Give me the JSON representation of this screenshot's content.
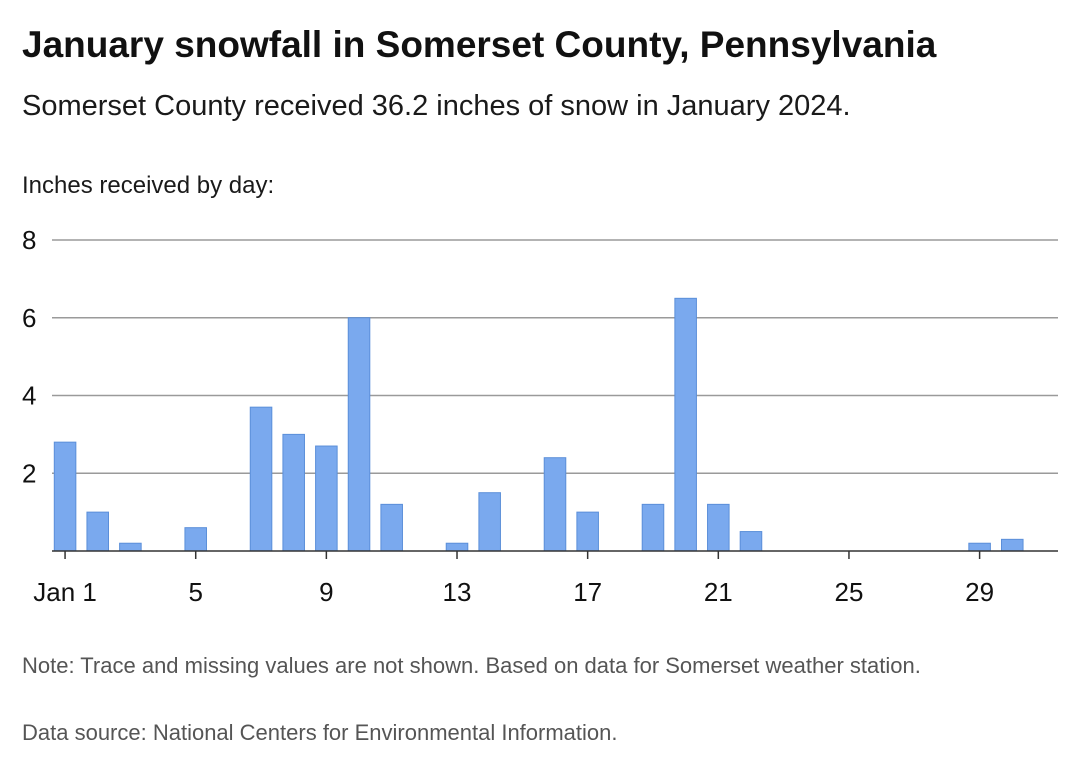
{
  "title": "January snowfall in Somerset County, Pennsylvania",
  "subtitle": "Somerset County received 36.2 inches of snow in January 2024.",
  "note": "Note: Trace and missing values are not shown. Based on data for Somerset weather station.",
  "source": "Data source: National Centers for Environmental Information.",
  "colors": {
    "bar": "#7aa9ee",
    "bar_stroke": "#5b8fd9",
    "grid": "#9a9a9a",
    "axis": "#333333"
  },
  "chart_data": {
    "type": "bar",
    "ylabel": "Inches received by day:",
    "xlabel": "",
    "ylim": [
      0,
      8
    ],
    "yticks": [
      2,
      4,
      6,
      8
    ],
    "xlim": [
      0.6,
      31.4
    ],
    "xticks": [
      {
        "value": 1,
        "label": "Jan 1"
      },
      {
        "value": 5,
        "label": "5"
      },
      {
        "value": 9,
        "label": "9"
      },
      {
        "value": 13,
        "label": "13"
      },
      {
        "value": 17,
        "label": "17"
      },
      {
        "value": 21,
        "label": "21"
      },
      {
        "value": 25,
        "label": "25"
      },
      {
        "value": 29,
        "label": "29"
      }
    ],
    "grid": true,
    "points": [
      {
        "day": 1,
        "value": 2.8
      },
      {
        "day": 2,
        "value": 1.0
      },
      {
        "day": 3,
        "value": 0.2
      },
      {
        "day": 5,
        "value": 0.6
      },
      {
        "day": 7,
        "value": 3.7
      },
      {
        "day": 8,
        "value": 3.0
      },
      {
        "day": 9,
        "value": 2.7
      },
      {
        "day": 10,
        "value": 6.0
      },
      {
        "day": 11,
        "value": 1.2
      },
      {
        "day": 13,
        "value": 0.2
      },
      {
        "day": 14,
        "value": 1.5
      },
      {
        "day": 16,
        "value": 2.4
      },
      {
        "day": 17,
        "value": 1.0
      },
      {
        "day": 19,
        "value": 1.2
      },
      {
        "day": 20,
        "value": 6.5
      },
      {
        "day": 21,
        "value": 1.2
      },
      {
        "day": 22,
        "value": 0.5
      },
      {
        "day": 29,
        "value": 0.2
      },
      {
        "day": 30,
        "value": 0.3
      }
    ]
  }
}
